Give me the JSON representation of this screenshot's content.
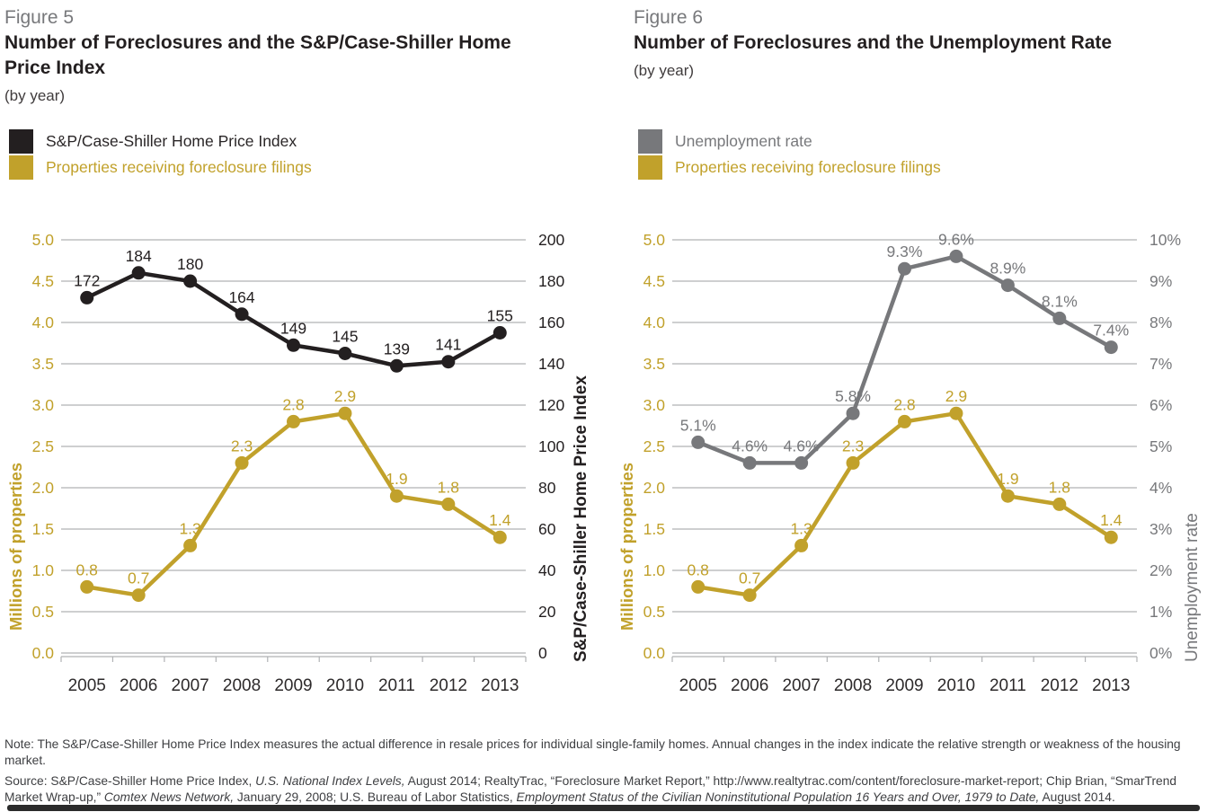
{
  "colors": {
    "gold": "#C1A12B",
    "black": "#231F20",
    "gray": "#77787B",
    "gridline": "#B0B2B4",
    "year_label": "#2D2A2B",
    "note_text": "#3E3F42"
  },
  "chart_data": [
    {
      "type": "line",
      "figure_label": "Figure 5",
      "title": "Number of Foreclosures and the S&P/Case-Shiller Home Price Index",
      "subtitle": "(by year)",
      "categories": [
        "2005",
        "2006",
        "2007",
        "2008",
        "2009",
        "2010",
        "2011",
        "2012",
        "2013"
      ],
      "left_axis": {
        "label": "Millions of properties",
        "color": "#C1A12B",
        "min": 0,
        "max": 5,
        "ticks": [
          "5.0",
          "4.5",
          "4.0",
          "3.5",
          "3.0",
          "2.5",
          "2.0",
          "1.5",
          "1.0",
          "0.5",
          "0.0"
        ]
      },
      "right_axis": {
        "label": "S&P/Case-Shiller Home Price Index",
        "color": "#231F20",
        "min": 0,
        "max": 200,
        "ticks": [
          "200",
          "180",
          "160",
          "140",
          "120",
          "100",
          "80",
          "60",
          "40",
          "20",
          "0"
        ]
      },
      "series": [
        {
          "name": "S&P/Case-Shiller Home Price Index",
          "axis": "right",
          "color": "#231F20",
          "values": [
            172,
            184,
            180,
            164,
            149,
            145,
            139,
            141,
            155
          ],
          "point_labels": [
            "172",
            "184",
            "180",
            "164",
            "149",
            "145",
            "139",
            "141",
            "155"
          ]
        },
        {
          "name": "Properties receiving foreclosure filings",
          "axis": "left",
          "color": "#C1A12B",
          "values": [
            0.8,
            0.7,
            1.3,
            2.3,
            2.8,
            2.9,
            1.9,
            1.8,
            1.4
          ],
          "point_labels": [
            "0.8",
            "0.7",
            "1.3",
            "2.3",
            "2.8",
            "2.9",
            "1.9",
            "1.8",
            "1.4"
          ]
        }
      ]
    },
    {
      "type": "line",
      "figure_label": "Figure 6",
      "title": "Number of Foreclosures and the Unemployment Rate",
      "subtitle": "(by year)",
      "categories": [
        "2005",
        "2006",
        "2007",
        "2008",
        "2009",
        "2010",
        "2011",
        "2012",
        "2013"
      ],
      "left_axis": {
        "label": "Millions of properties",
        "color": "#C1A12B",
        "min": 0,
        "max": 5,
        "ticks": [
          "5.0",
          "4.5",
          "4.0",
          "3.5",
          "3.0",
          "2.5",
          "2.0",
          "1.5",
          "1.0",
          "0.5",
          "0.0"
        ]
      },
      "right_axis": {
        "label": "Unemployment rate",
        "color": "#77787B",
        "min": 0,
        "max": 10,
        "ticks": [
          "10%",
          "9%",
          "8%",
          "7%",
          "6%",
          "5%",
          "4%",
          "3%",
          "2%",
          "1%",
          "0%"
        ]
      },
      "series": [
        {
          "name": "Unemployment rate",
          "axis": "right",
          "color": "#77787B",
          "values": [
            5.1,
            4.6,
            4.6,
            5.8,
            9.3,
            9.6,
            8.9,
            8.1,
            7.4
          ],
          "point_labels": [
            "5.1%",
            "4.6%",
            "4.6%",
            "5.8%",
            "9.3%",
            "9.6%",
            "8.9%",
            "8.1%",
            "7.4%"
          ]
        },
        {
          "name": "Properties receiving foreclosure filings",
          "axis": "left",
          "color": "#C1A12B",
          "values": [
            0.8,
            0.7,
            1.3,
            2.3,
            2.8,
            2.9,
            1.9,
            1.8,
            1.4
          ],
          "point_labels": [
            "0.8",
            "0.7",
            "1.3",
            "2.3",
            "2.8",
            "2.9",
            "1.9",
            "1.8",
            "1.4"
          ]
        }
      ]
    }
  ],
  "note": {
    "text": "Note: The S&P/Case-Shiller Home Price Index measures the actual difference in resale prices for individual single-family homes. Annual changes in the index indicate the relative strength or weakness of the housing market."
  },
  "source": {
    "segments": [
      {
        "text": "Source: S&P/Case-Shiller Home Price Index, ",
        "italic": false
      },
      {
        "text": "U.S. National Index Levels,",
        "italic": true
      },
      {
        "text": " August 2014; RealtyTrac, “Foreclosure Market Report,” http://www.realtytrac.com/content/foreclosure-market-report; Chip Brian, “SmarTrend Market Wrap-up,” ",
        "italic": false
      },
      {
        "text": "Comtex News Network,",
        "italic": true
      },
      {
        "text": " January 29, 2008; U.S. Bureau of Labor Statistics, ",
        "italic": false
      },
      {
        "text": "Employment Status of the Civilian Noninstitutional Population 16 Years and Over, 1979 to Date,",
        "italic": true
      },
      {
        "text": " August 2014.",
        "italic": false
      }
    ]
  }
}
